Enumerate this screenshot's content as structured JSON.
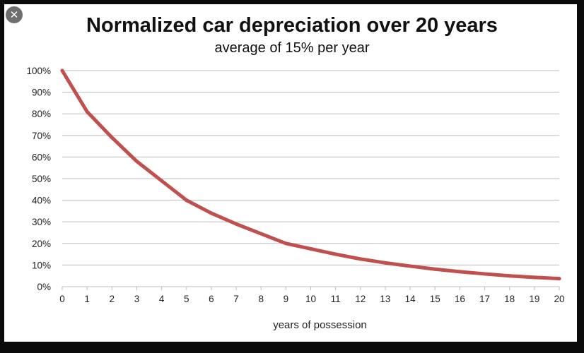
{
  "window": {
    "close_icon": "close-icon",
    "close_glyph": "✕"
  },
  "chart_data": {
    "type": "line",
    "title": "Normalized car depreciation over 20 years",
    "subtitle": "average of 15% per year",
    "xlabel": "years of possession",
    "ylabel": "",
    "x": [
      0,
      1,
      2,
      3,
      4,
      5,
      6,
      7,
      8,
      9,
      10,
      11,
      12,
      13,
      14,
      15,
      16,
      17,
      18,
      19,
      20
    ],
    "series": [
      {
        "values": [
          100,
          81,
          69,
          58,
          49,
          40,
          34,
          29,
          24.5,
          20,
          17.5,
          15,
          12.8,
          11,
          9.5,
          8.1,
          6.9,
          5.9,
          5,
          4.3,
          3.7
        ],
        "color": "#c0504d"
      }
    ],
    "xlim": [
      0,
      20
    ],
    "ylim": [
      0,
      100
    ],
    "x_ticks": [
      "0",
      "1",
      "2",
      "3",
      "4",
      "5",
      "6",
      "7",
      "8",
      "9",
      "10",
      "11",
      "12",
      "13",
      "14",
      "15",
      "16",
      "17",
      "18",
      "19",
      "20"
    ],
    "y_ticks": [
      "0%",
      "10%",
      "20%",
      "30%",
      "40%",
      "50%",
      "60%",
      "70%",
      "80%",
      "90%",
      "100%"
    ],
    "grid": true,
    "legend": "none"
  }
}
